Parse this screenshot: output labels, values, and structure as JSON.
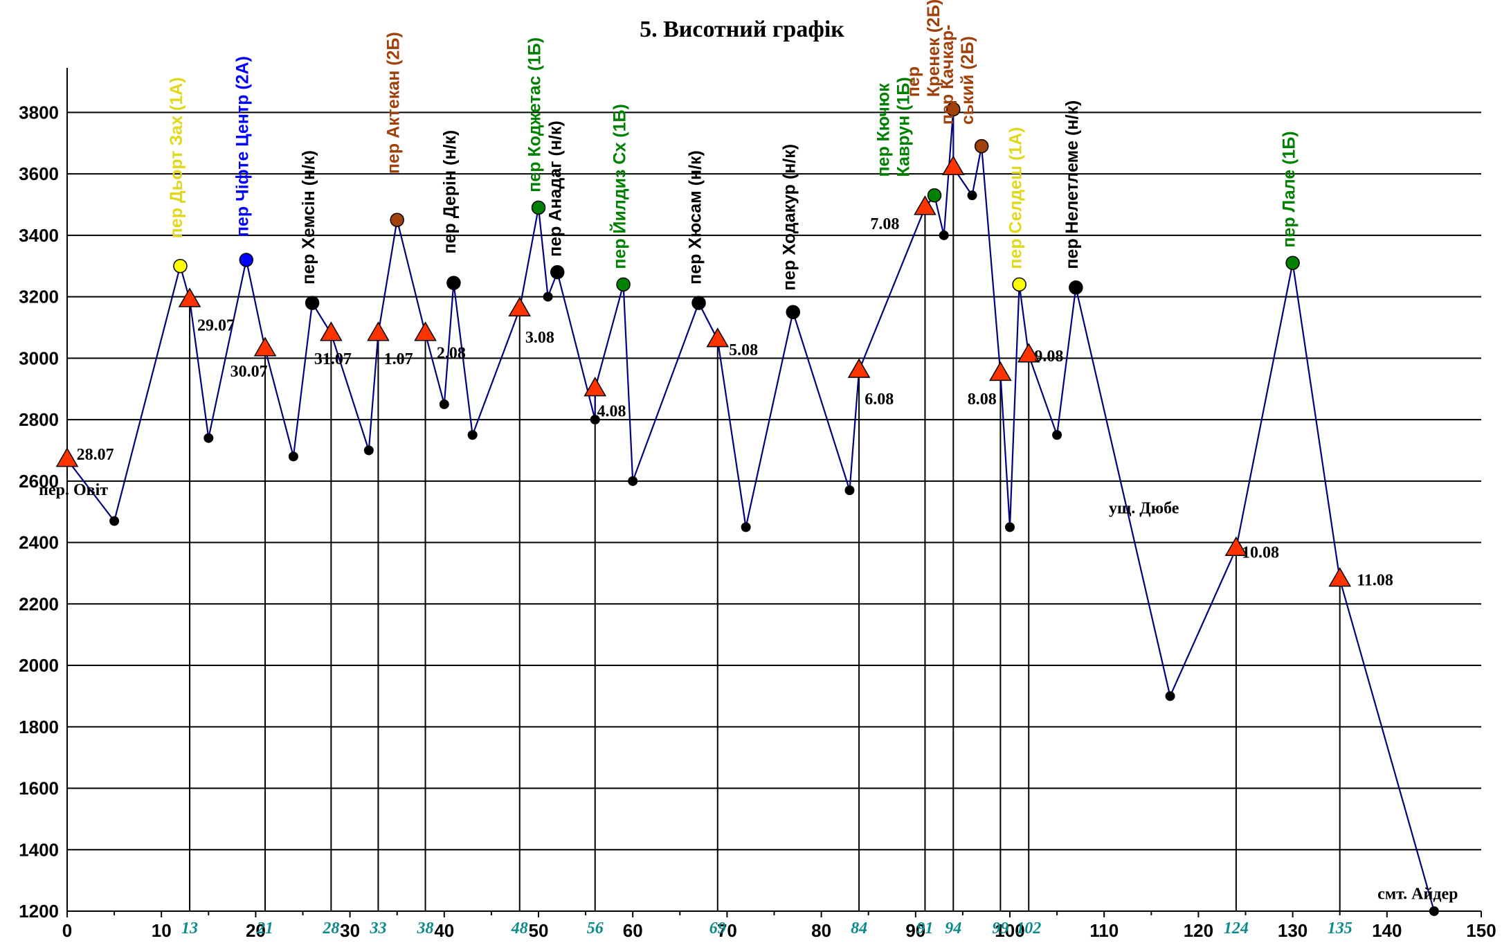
{
  "chart_data": {
    "type": "line",
    "title": "5. Висотний графік",
    "xlim": [
      0,
      150
    ],
    "ylim": [
      1200,
      3900
    ],
    "grid": true,
    "x_ticks": [
      0,
      10,
      20,
      30,
      40,
      50,
      60,
      70,
      80,
      90,
      100,
      110,
      120,
      130,
      140,
      150
    ],
    "y_ticks": [
      1200,
      1400,
      1600,
      1800,
      2000,
      2200,
      2400,
      2600,
      2800,
      3000,
      3200,
      3400,
      3600,
      3800
    ],
    "line_color": "#000080",
    "series": [
      {
        "values": [
          {
            "x": 0,
            "y": 2670,
            "kind": "camp"
          },
          {
            "x": 5,
            "y": 2470,
            "kind": "point"
          },
          {
            "x": 12,
            "y": 3300,
            "kind": "pass",
            "color": "#ffff00"
          },
          {
            "x": 13,
            "y": 3190,
            "kind": "camp"
          },
          {
            "x": 15,
            "y": 2740,
            "kind": "point"
          },
          {
            "x": 19,
            "y": 3320,
            "kind": "pass",
            "color": "#0000ff"
          },
          {
            "x": 21,
            "y": 3030,
            "kind": "camp"
          },
          {
            "x": 24,
            "y": 2680,
            "kind": "point"
          },
          {
            "x": 26,
            "y": 3180,
            "kind": "pass",
            "color": "#000000"
          },
          {
            "x": 28,
            "y": 3080,
            "kind": "camp"
          },
          {
            "x": 32,
            "y": 2700,
            "kind": "point"
          },
          {
            "x": 33,
            "y": 3080,
            "kind": "camp"
          },
          {
            "x": 35,
            "y": 3450,
            "kind": "pass",
            "color": "#a0400a"
          },
          {
            "x": 38,
            "y": 3080,
            "kind": "camp"
          },
          {
            "x": 40,
            "y": 2850,
            "kind": "point"
          },
          {
            "x": 41,
            "y": 3245,
            "kind": "pass",
            "color": "#000000"
          },
          {
            "x": 43,
            "y": 2750,
            "kind": "point"
          },
          {
            "x": 48,
            "y": 3160,
            "kind": "camp"
          },
          {
            "x": 50,
            "y": 3490,
            "kind": "pass",
            "color": "#008000"
          },
          {
            "x": 51,
            "y": 3200,
            "kind": "point"
          },
          {
            "x": 52,
            "y": 3280,
            "kind": "pass",
            "color": "#000000"
          },
          {
            "x": 56,
            "y": 2800,
            "kind": "point"
          },
          {
            "x": 56,
            "y": 2900,
            "kind": "camp"
          },
          {
            "x": 59,
            "y": 3240,
            "kind": "pass",
            "color": "#008000"
          },
          {
            "x": 60,
            "y": 2600,
            "kind": "point"
          },
          {
            "x": 67,
            "y": 3180,
            "kind": "pass",
            "color": "#000000"
          },
          {
            "x": 69,
            "y": 3060,
            "kind": "camp"
          },
          {
            "x": 72,
            "y": 2450,
            "kind": "point"
          },
          {
            "x": 77,
            "y": 3150,
            "kind": "pass",
            "color": "#000000"
          },
          {
            "x": 83,
            "y": 2570,
            "kind": "point"
          },
          {
            "x": 84,
            "y": 2960,
            "kind": "camp"
          },
          {
            "x": 91,
            "y": 3490,
            "kind": "camp"
          },
          {
            "x": 92,
            "y": 3530,
            "kind": "pass",
            "color": "#008000"
          },
          {
            "x": 93,
            "y": 3400,
            "kind": "point"
          },
          {
            "x": 94,
            "y": 3810,
            "kind": "pass",
            "color": "#a0400a"
          },
          {
            "x": 94,
            "y": 3620,
            "kind": "camp"
          },
          {
            "x": 96,
            "y": 3530,
            "kind": "point"
          },
          {
            "x": 97,
            "y": 3690,
            "kind": "pass",
            "color": "#a0400a"
          },
          {
            "x": 99,
            "y": 2950,
            "kind": "camp"
          },
          {
            "x": 100,
            "y": 2450,
            "kind": "point"
          },
          {
            "x": 101,
            "y": 3240,
            "kind": "pass",
            "color": "#ffff00"
          },
          {
            "x": 102,
            "y": 3010,
            "kind": "camp"
          },
          {
            "x": 105,
            "y": 2750,
            "kind": "point"
          },
          {
            "x": 107,
            "y": 3230,
            "kind": "pass",
            "color": "#000000"
          },
          {
            "x": 117,
            "y": 1900,
            "kind": "point"
          },
          {
            "x": 124,
            "y": 2380,
            "kind": "camp"
          },
          {
            "x": 130,
            "y": 3310,
            "kind": "pass",
            "color": "#008000"
          },
          {
            "x": 135,
            "y": 2280,
            "kind": "camp"
          },
          {
            "x": 145,
            "y": 1200,
            "kind": "point"
          }
        ]
      }
    ],
    "camp_markers": [
      {
        "x": 13,
        "km": "13"
      },
      {
        "x": 21,
        "km": "21"
      },
      {
        "x": 28,
        "km": "28"
      },
      {
        "x": 33,
        "km": "33"
      },
      {
        "x": 38,
        "km": "38"
      },
      {
        "x": 48,
        "km": "48"
      },
      {
        "x": 56,
        "km": "56"
      },
      {
        "x": 69,
        "km": "69"
      },
      {
        "x": 84,
        "km": "84"
      },
      {
        "x": 91,
        "km": "91"
      },
      {
        "x": 94,
        "km": "94"
      },
      {
        "x": 99,
        "km": "99"
      },
      {
        "x": 102,
        "km": "102"
      },
      {
        "x": 124,
        "km": "124"
      },
      {
        "x": 135,
        "km": "135"
      }
    ],
    "day_labels": [
      {
        "text": "28.07",
        "x": 1,
        "y": 2670
      },
      {
        "text": "29.07",
        "x": 13.8,
        "y": 3090
      },
      {
        "text": "30.07",
        "x": 17.3,
        "y": 2940
      },
      {
        "text": "31.07",
        "x": 26.2,
        "y": 2980
      },
      {
        "text": "1.07",
        "x": 33.6,
        "y": 2980
      },
      {
        "text": "2.08",
        "x": 39.2,
        "y": 3000
      },
      {
        "text": "3.08",
        "x": 48.6,
        "y": 3050
      },
      {
        "text": "4.08",
        "x": 56.2,
        "y": 2810
      },
      {
        "text": "5.08",
        "x": 70.2,
        "y": 3010
      },
      {
        "text": "6.08",
        "x": 84.6,
        "y": 2850
      },
      {
        "text": "7.08",
        "x": 85.2,
        "y": 3420
      },
      {
        "text": "8.08",
        "x": 95.5,
        "y": 2850
      },
      {
        "text": "9.08",
        "x": 102.6,
        "y": 2990
      },
      {
        "text": "10.08",
        "x": 124.6,
        "y": 2350
      },
      {
        "text": "11.08",
        "x": 136.8,
        "y": 2260
      }
    ],
    "pass_labels": [
      {
        "lines": [
          "пер Дьорт Зах (1А)"
        ],
        "color": "#e0d81a",
        "x": 12.2,
        "y": 3390
      },
      {
        "lines": [
          "пер Чіфте Центр (2А)"
        ],
        "color": "#0000ff",
        "x": 19.2,
        "y": 3395
      },
      {
        "lines": [
          "пер Хемсін (н/к)"
        ],
        "color": "#000000",
        "x": 26.2,
        "y": 3240
      },
      {
        "lines": [
          "пер  Актекан  (2Б)"
        ],
        "color": "#a0400a",
        "x": 35.2,
        "y": 3600
      },
      {
        "lines": [
          "пер  Дерін (н/к)"
        ],
        "color": "#000000",
        "x": 41.2,
        "y": 3340
      },
      {
        "lines": [
          "пер Коджетас (1Б)"
        ],
        "color": "#008000",
        "x": 50.2,
        "y": 3540
      },
      {
        "lines": [
          "пер Анадаг (н/к)"
        ],
        "color": "#000000",
        "x": 52.4,
        "y": 3330
      },
      {
        "lines": [
          "пер Йилдиз Сх (1Б)"
        ],
        "color": "#008000",
        "x": 59.2,
        "y": 3290
      },
      {
        "lines": [
          "пер Хюсам (н/к)"
        ],
        "color": "#000000",
        "x": 67.2,
        "y": 3240
      },
      {
        "lines": [
          "пер Ходакур (н/к)"
        ],
        "color": "#000000",
        "x": 77.2,
        "y": 3220
      },
      {
        "lines": [
          "пер Кючюк",
          "Каврун  (1Б)"
        ],
        "color": "#008000",
        "x": 89.3,
        "y": 3590
      },
      {
        "lines": [
          "пер",
          "Кренек (2Б)"
        ],
        "color": "#a0400a",
        "x": 92.5,
        "y": 3850
      },
      {
        "lines": [
          "пер Качкар-",
          "ський (2Б)"
        ],
        "color": "#a0400a",
        "x": 96.1,
        "y": 3760
      },
      {
        "lines": [
          "пер Селдеш (1А)"
        ],
        "color": "#e0d81a",
        "x": 101.2,
        "y": 3290
      },
      {
        "lines": [
          "пер Нелетлеме (н/к)"
        ],
        "color": "#000000",
        "x": 107.2,
        "y": 3290
      },
      {
        "lines": [
          "пер Лале (1Б)"
        ],
        "color": "#008000",
        "x": 130.2,
        "y": 3360
      }
    ],
    "place_labels": [
      {
        "text": "пер. Овіт",
        "x": -3,
        "y": 2555
      },
      {
        "text": "ущ. Дюбе",
        "x": 110.5,
        "y": 2495
      },
      {
        "text": "смт. Айдер",
        "x": 139,
        "y": 1240
      }
    ]
  }
}
